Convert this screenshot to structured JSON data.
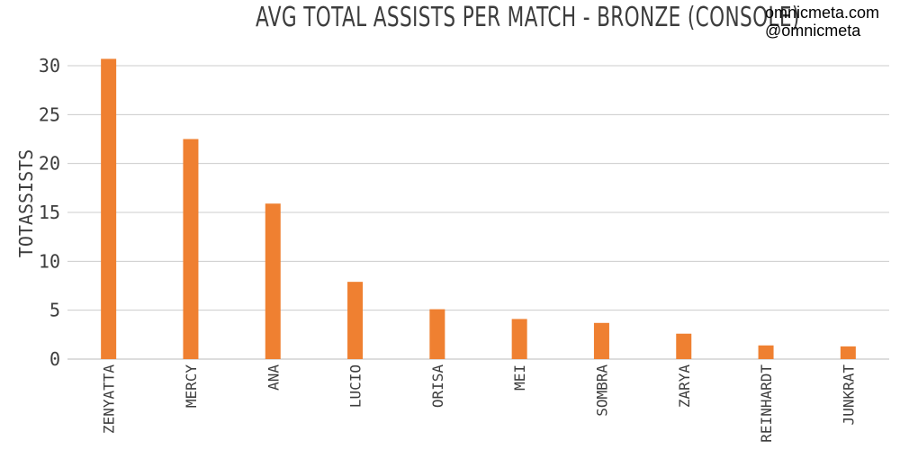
{
  "credits": {
    "site": "omnicmeta.com",
    "handle": "@omnicmeta"
  },
  "chart_data": {
    "type": "bar",
    "title": "AVG TOTAL ASSISTS PER MATCH - BRONZE (CONSOLE)",
    "xlabel": "",
    "ylabel": "TOTASSISTS",
    "categories": [
      "ZENYATTA",
      "MERCY",
      "ANA",
      "LUCIO",
      "ORISA",
      "MEI",
      "SOMBRA",
      "ZARYA",
      "REINHARDT",
      "JUNKRAT"
    ],
    "values": [
      30.7,
      22.5,
      15.9,
      7.9,
      5.1,
      4.1,
      3.7,
      2.6,
      1.4,
      1.3
    ],
    "ylim": [
      0,
      30
    ],
    "yticks": [
      0,
      5,
      10,
      15,
      20,
      25,
      30
    ],
    "grid": true,
    "bar_color": "#ef8031",
    "grid_color": "#cccccc"
  }
}
